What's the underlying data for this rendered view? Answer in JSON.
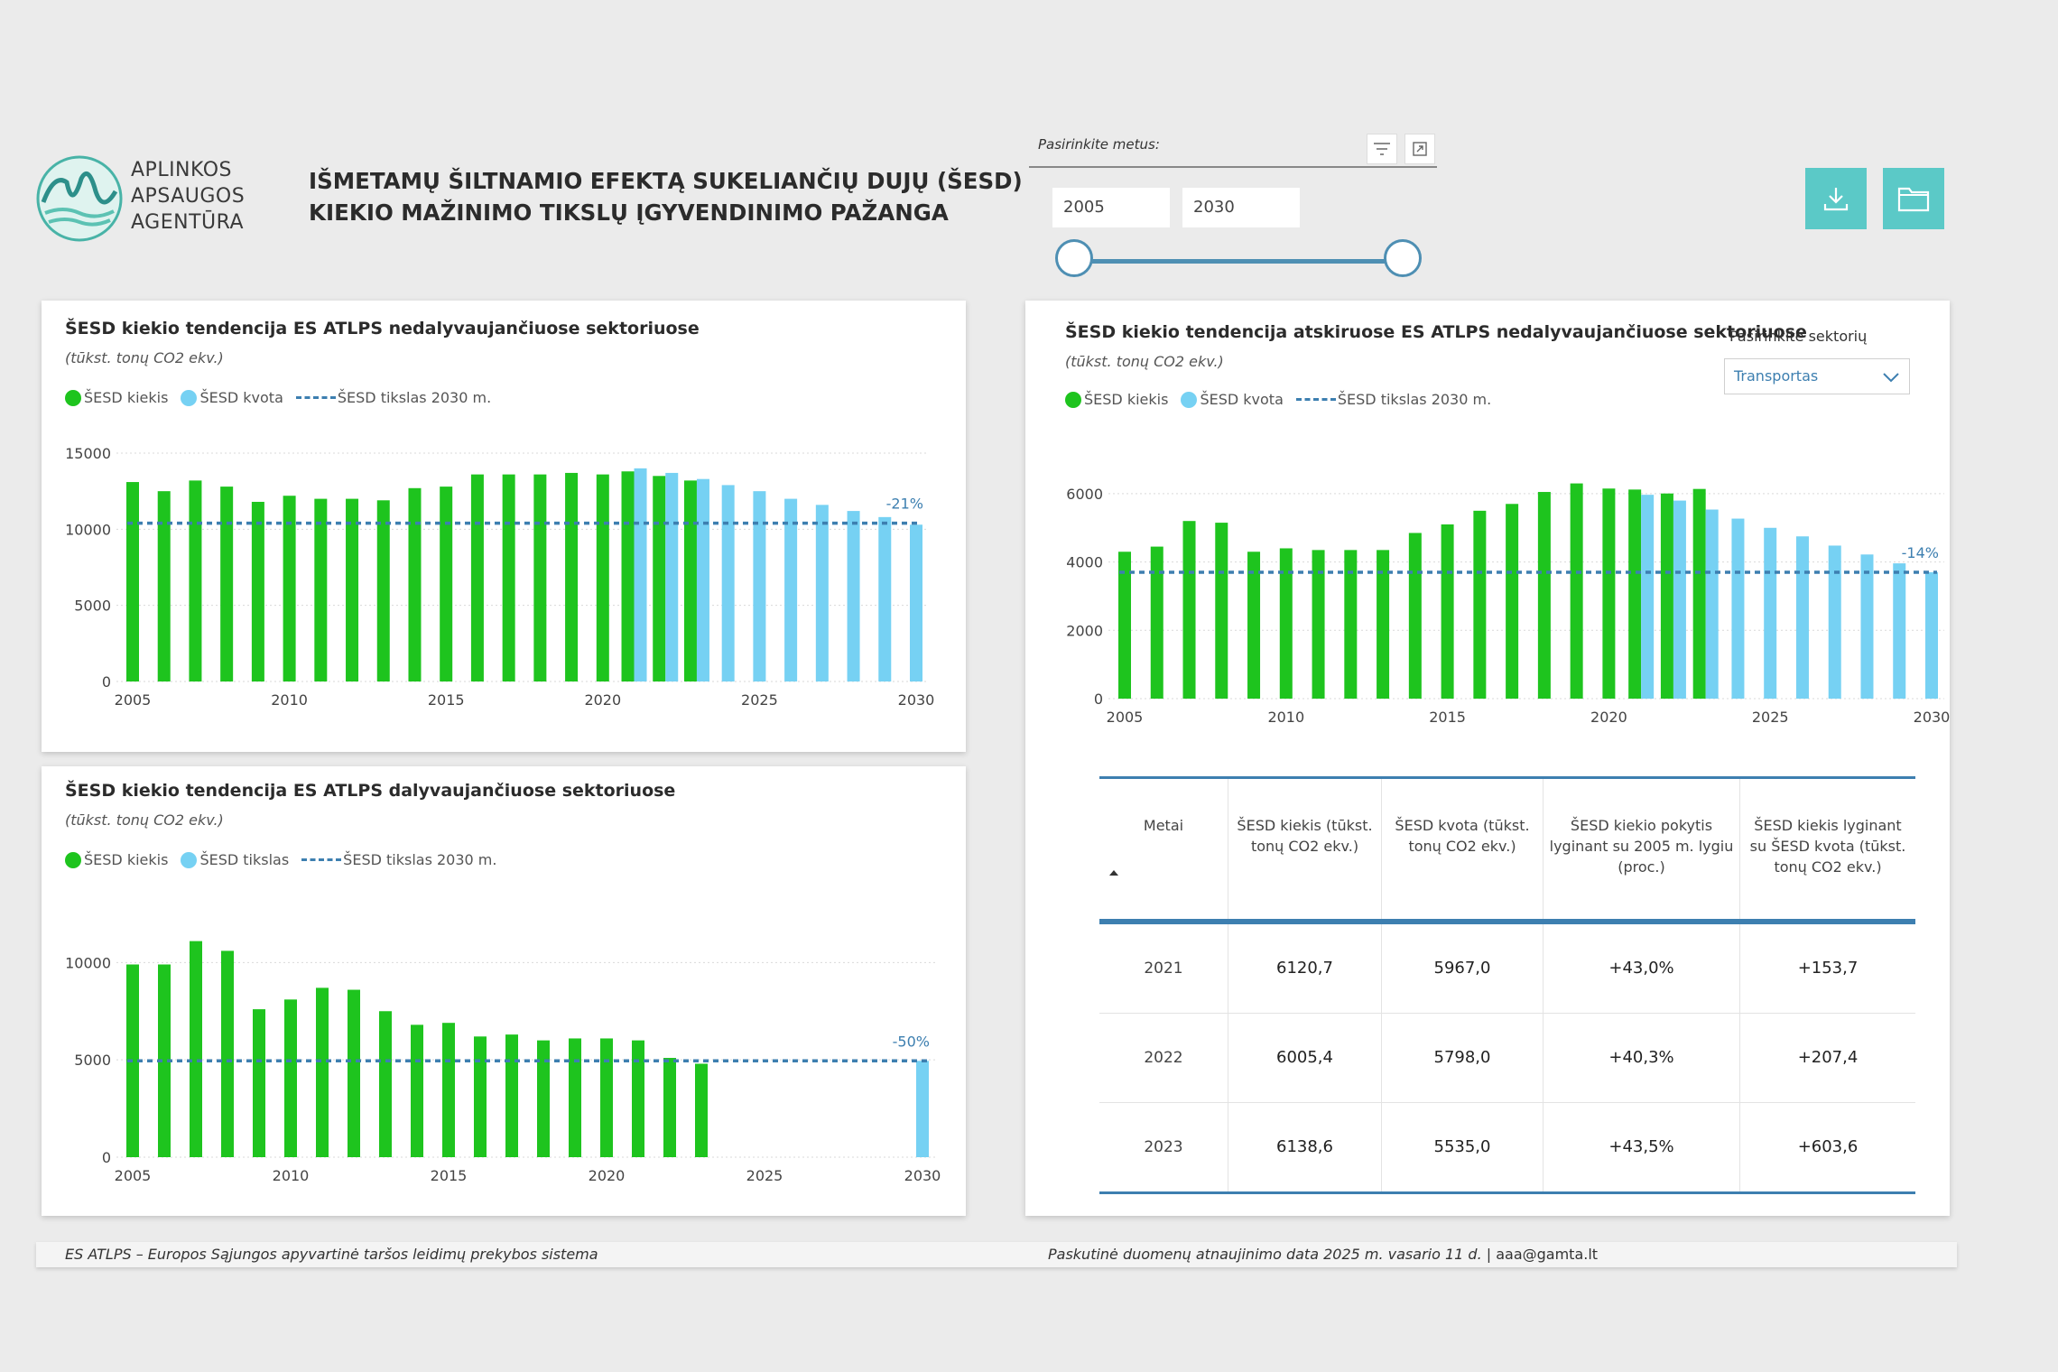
{
  "header": {
    "logo_lines": [
      "APLINKOS",
      "APSAUGOS",
      "AGENTŪRA"
    ],
    "title_line1": "IŠMETAMŲ ŠILTNAMIO EFEKTĄ SUKELIANČIŲ DUJŲ (ŠESD)",
    "title_line2": "KIEKIO MAŽINIMO TIKSLŲ ĮGYVENDINIMO PAŽANGA"
  },
  "year_slicer": {
    "label": "Pasirinkite metus:",
    "from": "2005",
    "to": "2030",
    "icons": [
      "filter-icon",
      "focus-mode-icon"
    ]
  },
  "actions": {
    "icons": [
      "download-icon",
      "folder-icon"
    ],
    "color": "#5bc9c7"
  },
  "colors": {
    "emission": "#1ec41e",
    "quota": "#76d1f3",
    "target_line": "#3d7fb0"
  },
  "chart1": {
    "title": "ŠESD kiekio tendencija ES ATLPS nedalyvaujančiuose sektoriuose",
    "subtitle": "(tūkst. tonų CO2 ekv.)",
    "legend": [
      "ŠESD kiekis",
      "ŠESD kvota",
      "ŠESD tikslas 2030 m."
    ]
  },
  "chart2": {
    "title": "ŠESD kiekio tendencija ES ATLPS dalyvaujančiuose sektoriuose",
    "subtitle": "(tūkst. tonų CO2 ekv.)",
    "legend": [
      "ŠESD kiekis",
      "ŠESD tikslas",
      "ŠESD tikslas 2030 m."
    ]
  },
  "chart3": {
    "title": "ŠESD kiekio tendencija atskiruose ES ATLPS nedalyvaujančiuose sektoriuose",
    "subtitle": "(tūkst. tonų CO2 ekv.)",
    "legend": [
      "ŠESD kiekis",
      "ŠESD kvota",
      "ŠESD tikslas 2030 m."
    ],
    "sector_label": "Pasirinkite sektorių",
    "sector_value": "Transportas"
  },
  "chart_data": [
    {
      "type": "bar",
      "title": "ŠESD kiekio tendencija ES ATLPS nedalyvaujančiuose sektoriuose",
      "ylim": [
        0,
        15000
      ],
      "yticks": [
        0,
        5000,
        10000,
        15000
      ],
      "xticks": [
        2005,
        2010,
        2015,
        2020,
        2025,
        2030
      ],
      "years": [
        2005,
        2006,
        2007,
        2008,
        2009,
        2010,
        2011,
        2012,
        2013,
        2014,
        2015,
        2016,
        2017,
        2018,
        2019,
        2020,
        2021,
        2022,
        2023,
        2024,
        2025,
        2026,
        2027,
        2028,
        2029,
        2030
      ],
      "series": [
        {
          "name": "ŠESD kiekis",
          "values": [
            13100,
            12500,
            13200,
            12800,
            11800,
            12200,
            12000,
            12000,
            11900,
            12700,
            12800,
            13600,
            13600,
            13600,
            13700,
            13600,
            13800,
            13500,
            13200,
            null,
            null,
            null,
            null,
            null,
            null,
            null
          ]
        },
        {
          "name": "ŠESD kvota",
          "values": [
            null,
            null,
            null,
            null,
            null,
            null,
            null,
            null,
            null,
            null,
            null,
            null,
            null,
            null,
            null,
            null,
            14000,
            13700,
            13300,
            12900,
            12500,
            12000,
            11600,
            11200,
            10800,
            10300
          ]
        }
      ],
      "target": 10400,
      "target_label": "-21%"
    },
    {
      "type": "bar",
      "title": "ŠESD kiekio tendencija ES ATLPS dalyvaujančiuose sektoriuose",
      "ylim": [
        0,
        11500
      ],
      "yticks": [
        0,
        5000,
        10000
      ],
      "xticks": [
        2005,
        2010,
        2015,
        2020,
        2025,
        2030
      ],
      "years": [
        2005,
        2006,
        2007,
        2008,
        2009,
        2010,
        2011,
        2012,
        2013,
        2014,
        2015,
        2016,
        2017,
        2018,
        2019,
        2020,
        2021,
        2022,
        2023,
        2024,
        2025,
        2026,
        2027,
        2028,
        2029,
        2030
      ],
      "series": [
        {
          "name": "ŠESD kiekis",
          "values": [
            9900,
            9900,
            11100,
            10600,
            7600,
            8100,
            8700,
            8600,
            7500,
            6800,
            6900,
            6200,
            6300,
            6000,
            6100,
            6100,
            6000,
            5100,
            4800,
            null,
            null,
            null,
            null,
            null,
            null,
            null
          ]
        },
        {
          "name": "ŠESD tikslas",
          "values": [
            null,
            null,
            null,
            null,
            null,
            null,
            null,
            null,
            null,
            null,
            null,
            null,
            null,
            null,
            null,
            null,
            null,
            null,
            null,
            null,
            null,
            null,
            null,
            null,
            null,
            4950
          ]
        }
      ],
      "target": 4950,
      "target_label": "-50%"
    },
    {
      "type": "bar",
      "title": "ŠESD kiekio tendencija atskiruose ES ATLPS nedalyvaujančiuose sektoriuose",
      "ylim": [
        0,
        6500
      ],
      "yticks": [
        0,
        2000,
        4000,
        6000
      ],
      "xticks": [
        2005,
        2010,
        2015,
        2020,
        2025,
        2030
      ],
      "years": [
        2005,
        2006,
        2007,
        2008,
        2009,
        2010,
        2011,
        2012,
        2013,
        2014,
        2015,
        2016,
        2017,
        2018,
        2019,
        2020,
        2021,
        2022,
        2023,
        2024,
        2025,
        2026,
        2027,
        2028,
        2029,
        2030
      ],
      "series": [
        {
          "name": "ŠESD kiekis",
          "values": [
            4300,
            4450,
            5200,
            5150,
            4300,
            4400,
            4350,
            4350,
            4350,
            4850,
            5100,
            5500,
            5700,
            6050,
            6300,
            6150,
            6120.7,
            6005.4,
            6138.6,
            null,
            null,
            null,
            null,
            null,
            null,
            null
          ]
        },
        {
          "name": "ŠESD kvota",
          "values": [
            null,
            null,
            null,
            null,
            null,
            null,
            null,
            null,
            null,
            null,
            null,
            null,
            null,
            null,
            null,
            null,
            5967,
            5798,
            5535,
            5270,
            5000,
            4750,
            4480,
            4220,
            3960,
            3700
          ]
        }
      ],
      "target": 3700,
      "target_label": "-14%"
    }
  ],
  "table": {
    "headers": [
      "Metai",
      "ŠESD kiekis (tūkst. tonų CO2 ekv.)",
      "ŠESD kvota (tūkst. tonų CO2 ekv.)",
      "ŠESD kiekio pokytis lyginant su 2005 m. lygiu (proc.)",
      "ŠESD kiekis lyginant su ŠESD kvota (tūkst. tonų CO2 ekv.)"
    ],
    "rows": [
      [
        "2021",
        "6120,7",
        "5967,0",
        "+43,0%",
        "+153,7"
      ],
      [
        "2022",
        "6005,4",
        "5798,0",
        "+40,3%",
        "+207,4"
      ],
      [
        "2023",
        "6138,6",
        "5535,0",
        "+43,5%",
        "+603,6"
      ]
    ]
  },
  "footer": {
    "left": "ES ATLPS – Europos Sąjungos apyvartinė taršos leidimų prekybos sistema",
    "right": "Paskutinė duomenų atnaujinimo data 2025 m. vasario 11  d.  |  ",
    "email": "aaa@gamta.lt"
  }
}
